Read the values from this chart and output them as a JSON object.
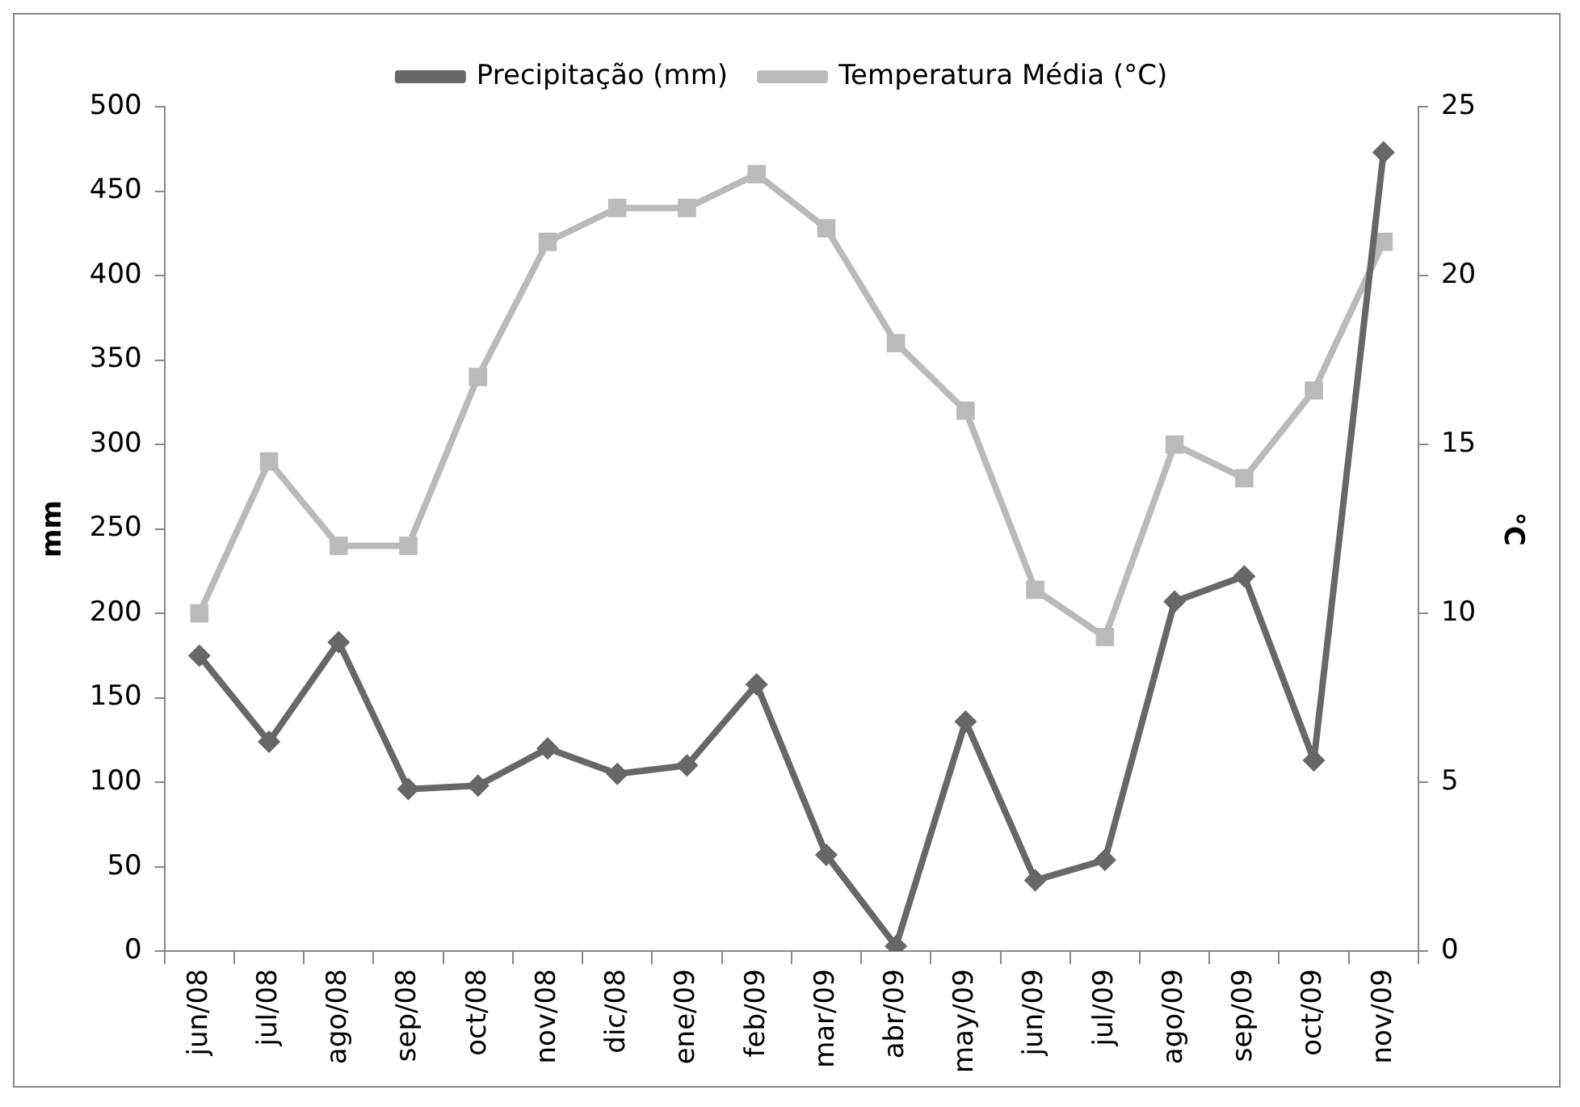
{
  "chart_data": {
    "type": "line",
    "categories": [
      "jun/08",
      "jul/08",
      "ago/08",
      "sep/08",
      "oct/08",
      "nov/08",
      "dic/08",
      "ene/09",
      "feb/09",
      "mar/09",
      "abr/09",
      "may/09",
      "jun/09",
      "jul/09",
      "ago/09",
      "sep/09",
      "oct/09",
      "nov/09"
    ],
    "series": [
      {
        "name": "Precipitação (mm)",
        "color": "#676767",
        "marker": "diamond",
        "values": [
          175,
          124,
          183,
          96,
          98,
          120,
          105,
          110,
          158,
          57,
          3,
          136,
          42,
          54,
          207,
          222,
          113,
          473
        ]
      },
      {
        "name": "Temperatura Média (°C)",
        "color": "#bababa",
        "marker": "square",
        "axis": "y2",
        "values": [
          10,
          14.5,
          12,
          12,
          17,
          21,
          22,
          22,
          23,
          21.4,
          18,
          16,
          10.7,
          9.3,
          15,
          14,
          16.6,
          21
        ]
      }
    ],
    "ylabel": "mm",
    "y2label": "°C",
    "ylim": [
      0,
      500
    ],
    "yticks": [
      0,
      50,
      100,
      150,
      200,
      250,
      300,
      350,
      400,
      450,
      500
    ],
    "y2lim": [
      0,
      25
    ],
    "y2ticks": [
      0,
      5,
      10,
      15,
      20,
      25
    ],
    "legend": "top",
    "grid": false,
    "line_style": "solid"
  }
}
